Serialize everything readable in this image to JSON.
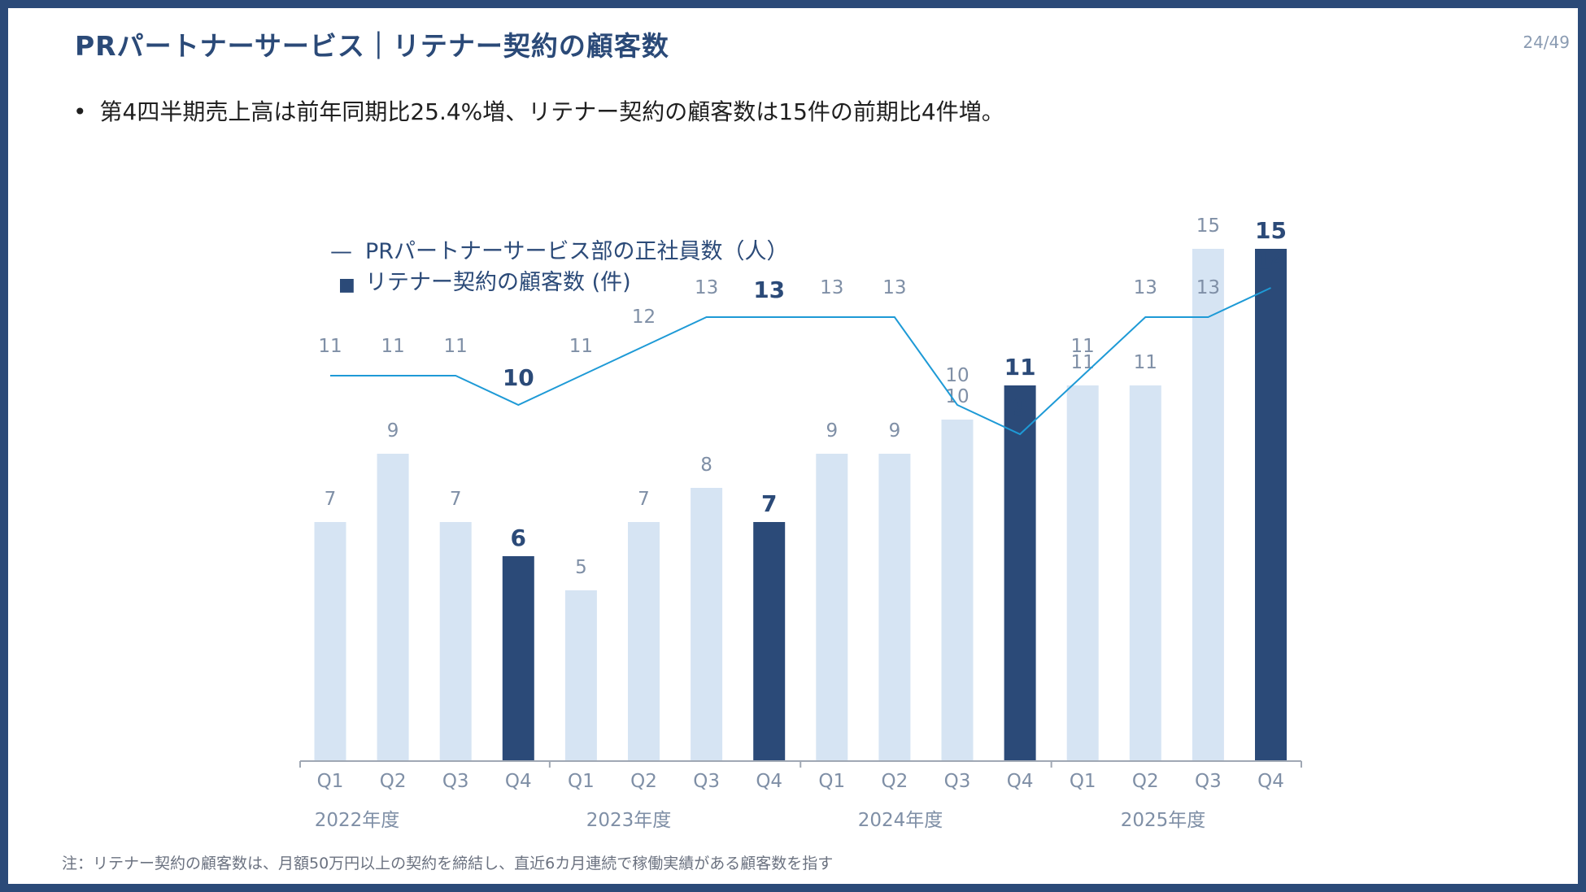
{
  "title": "PRパートナーサービス｜リテナー契約の顧客数",
  "page_number": "24/49",
  "bullet": "第4四半期売上高は前年同期比25.4%増、リテナー契約の顧客数は15件の前期比4件増。",
  "note": "注：リテナー契約の顧客数は、月額50万円以上の契約を締結し、直近6カ月連続で稼働実績がある顧客数を指す",
  "colors": {
    "frame": "#2b4a78",
    "bar_highlight": "#2b4a78",
    "bar_light": "#d6e4f3",
    "line": "#1e9ad6",
    "label_muted": "#7f8fa6",
    "label_strong": "#2b4a78"
  },
  "chart_data": {
    "type": "bar+line",
    "legend": [
      {
        "name": "PRパートナーサービス部の正社員数（人）",
        "marker": "—",
        "kind": "line"
      },
      {
        "name": "リテナー契約の顧客数 (件)",
        "marker": "■",
        "kind": "bar"
      }
    ],
    "categories": [
      "Q1",
      "Q2",
      "Q3",
      "Q4",
      "Q1",
      "Q2",
      "Q3",
      "Q4",
      "Q1",
      "Q2",
      "Q3",
      "Q4",
      "Q1",
      "Q2",
      "Q3",
      "Q4"
    ],
    "years": [
      "2022年度",
      "2023年度",
      "2024年度",
      "2025年度"
    ],
    "series": [
      {
        "name": "リテナー契約の顧客数 (件)",
        "type": "bar",
        "values": [
          7,
          9,
          7,
          6,
          5,
          7,
          8,
          7,
          9,
          9,
          10,
          11,
          11,
          11,
          15,
          15
        ]
      },
      {
        "name": "PRパートナーサービス部の正社員数（人）",
        "type": "line",
        "values": [
          11,
          11,
          11,
          10,
          11,
          12,
          13,
          13,
          13,
          13,
          10,
          9,
          11,
          13,
          13,
          14
        ]
      }
    ],
    "highlighted_indices": [
      3,
      7,
      11,
      15
    ]
  }
}
